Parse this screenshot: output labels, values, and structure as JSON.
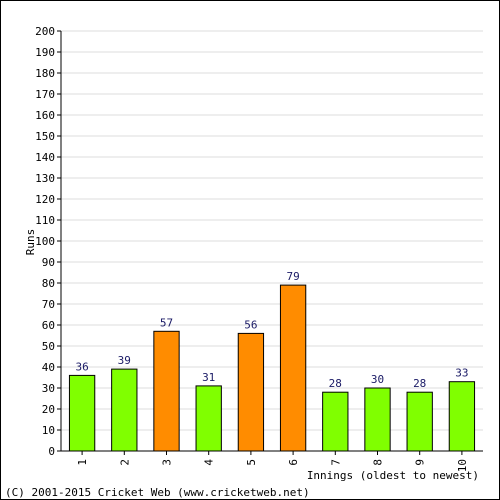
{
  "chart_data": {
    "type": "bar",
    "title": "",
    "xlabel": "Innings (oldest to newest)",
    "ylabel": "Runs",
    "ylim": [
      0,
      200
    ],
    "ytick_step": 10,
    "grid": true,
    "categories": [
      "1",
      "2",
      "3",
      "4",
      "5",
      "6",
      "7",
      "8",
      "9",
      "10"
    ],
    "values": [
      36,
      39,
      57,
      31,
      56,
      79,
      28,
      30,
      28,
      33
    ],
    "bar_colors": [
      "#80ff00",
      "#80ff00",
      "#ff8c00",
      "#80ff00",
      "#ff8c00",
      "#ff8c00",
      "#80ff00",
      "#80ff00",
      "#80ff00",
      "#80ff00"
    ],
    "data_label_color": "#1a1a66"
  },
  "footer": {
    "copyright": "(C) 2001-2015 Cricket Web (www.cricketweb.net)"
  }
}
